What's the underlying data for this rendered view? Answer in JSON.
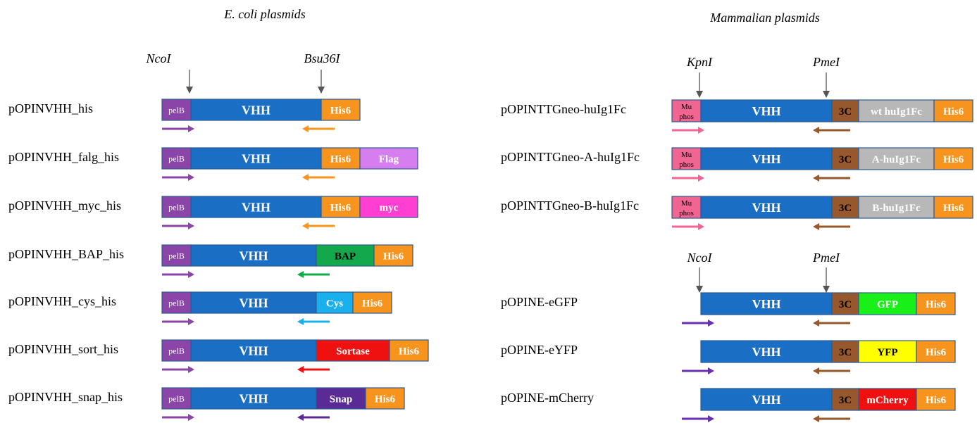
{
  "headings": {
    "left": "E. coli plasmids",
    "right": "Mammalian plasmids"
  },
  "sites": {
    "left": [
      "NcoI",
      "Bsu36I"
    ],
    "right_top": [
      "KpnI",
      "PmeI"
    ],
    "right_bottom": [
      "NcoI",
      "PmeI"
    ]
  },
  "colors": {
    "vhh": "#1a6fc4",
    "pelB": "#8b44a8",
    "his6": "#f7941d",
    "flag": "#d67ef0",
    "myc": "#ff3fd2",
    "bap": "#12a84b",
    "cys": "#1ab0ee",
    "sortase": "#ef1010",
    "snap": "#5a2a96",
    "mu_phos": "#f06592",
    "three_c": "#96582c",
    "fc": "#b8b8b8",
    "gfp": "#19f019",
    "yfp": "#ffff00",
    "mcherry": "#ef1010",
    "arrow_dark_purple": "#6a2fb4",
    "arrow_brown": "#96582c"
  },
  "left_plasmids": [
    {
      "name": "pOPINVHH_his",
      "segments": [
        "pelB",
        "VHH",
        "His6"
      ],
      "arrows": [
        "pelB",
        "His6"
      ]
    },
    {
      "name": "pOPINVHH_falg_his",
      "segments": [
        "pelB",
        "VHH",
        "His6",
        "Flag"
      ],
      "arrows": [
        "pelB",
        "His6"
      ]
    },
    {
      "name": "pOPINVHH_myc_his",
      "segments": [
        "pelB",
        "VHH",
        "His6",
        "myc"
      ],
      "arrows": [
        "pelB",
        "His6"
      ]
    },
    {
      "name": "pOPINVHH_BAP_his",
      "segments": [
        "pelB",
        "VHH",
        "BAP",
        "His6"
      ],
      "arrows": [
        "pelB",
        "BAP"
      ]
    },
    {
      "name": "pOPINVHH_cys_his",
      "segments": [
        "pelB",
        "VHH",
        "Cys",
        "His6"
      ],
      "arrows": [
        "pelB",
        "Cys"
      ]
    },
    {
      "name": "pOPINVHH_sort_his",
      "segments": [
        "pelB",
        "VHH",
        "Sortase",
        "His6"
      ],
      "arrows": [
        "pelB",
        "Sortase"
      ]
    },
    {
      "name": "pOPINVHH_snap_his",
      "segments": [
        "pelB",
        "VHH",
        "Snap",
        "His6"
      ],
      "arrows": [
        "pelB",
        "Snap"
      ]
    }
  ],
  "right_plasmids": [
    {
      "name": "pOPINTTGneo-huIg1Fc",
      "segments": [
        "Mu phos",
        "VHH",
        "3C",
        "wt huIg1Fc",
        "His6"
      ],
      "arrows": [
        "Mu phos",
        "3C"
      ]
    },
    {
      "name": "pOPINTTGneo-A-huIg1Fc",
      "segments": [
        "Mu phos",
        "VHH",
        "3C",
        "A-huIg1Fc",
        "His6"
      ],
      "arrows": [
        "Mu phos",
        "3C"
      ]
    },
    {
      "name": "pOPINTTGneo-B-huIg1Fc",
      "segments": [
        "Mu phos",
        "VHH",
        "3C",
        "B-huIg1Fc",
        "His6"
      ],
      "arrows": [
        "Mu phos",
        "3C"
      ]
    },
    {
      "name": "pOPINE-eGFP",
      "segments": [
        "VHH",
        "3C",
        "GFP",
        "His6"
      ],
      "arrows": [
        "VHH",
        "3C"
      ]
    },
    {
      "name": "pOPINE-eYFP",
      "segments": [
        "VHH",
        "3C",
        "YFP",
        "His6"
      ],
      "arrows": [
        "VHH",
        "3C"
      ]
    },
    {
      "name": "pOPINE-mCherry",
      "segments": [
        "VHH",
        "3C",
        "mCherry",
        "His6"
      ],
      "arrows": [
        "VHH",
        "3C"
      ]
    }
  ]
}
